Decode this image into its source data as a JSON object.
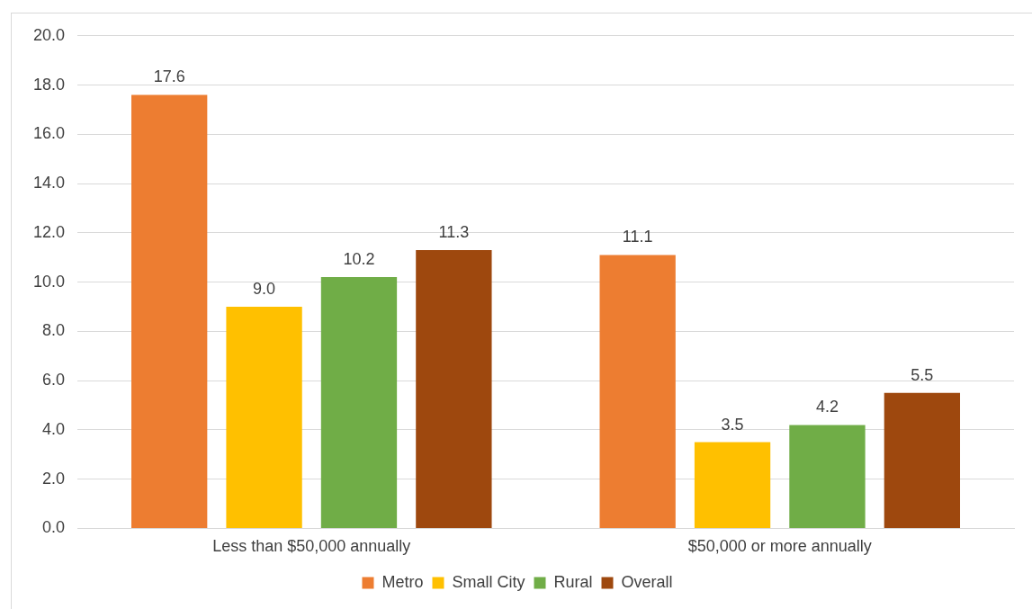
{
  "chart_data": {
    "type": "bar",
    "categories": [
      "Less than $50,000 annually",
      "$50,000 or more annually"
    ],
    "series": [
      {
        "name": "Metro",
        "color": "#ed7d31",
        "values": [
          17.6,
          11.1
        ],
        "value_labels": [
          "17.6",
          "11.1"
        ]
      },
      {
        "name": "Small City",
        "color": "#ffc000",
        "values": [
          9.0,
          3.5
        ],
        "value_labels": [
          "9.0",
          "3.5"
        ]
      },
      {
        "name": "Rural",
        "color": "#70ad47",
        "values": [
          10.2,
          4.2
        ],
        "value_labels": [
          "10.2",
          "4.2"
        ]
      },
      {
        "name": "Overall",
        "color": "#9e480e",
        "values": [
          11.3,
          5.5
        ],
        "value_labels": [
          "11.3",
          "5.5"
        ]
      }
    ],
    "ylim": [
      0,
      20
    ],
    "yticks": [
      {
        "value": 0,
        "label": "0.0"
      },
      {
        "value": 2,
        "label": "2.0"
      },
      {
        "value": 4,
        "label": "4.0"
      },
      {
        "value": 6,
        "label": "6.0"
      },
      {
        "value": 8,
        "label": "8.0"
      },
      {
        "value": 10,
        "label": "10.0"
      },
      {
        "value": 12,
        "label": "12.0"
      },
      {
        "value": 14,
        "label": "14.0"
      },
      {
        "value": 16,
        "label": "16.0"
      },
      {
        "value": 18,
        "label": "18.0"
      },
      {
        "value": 20,
        "label": "20.0"
      }
    ],
    "grid": "y",
    "legend": "bottom"
  }
}
